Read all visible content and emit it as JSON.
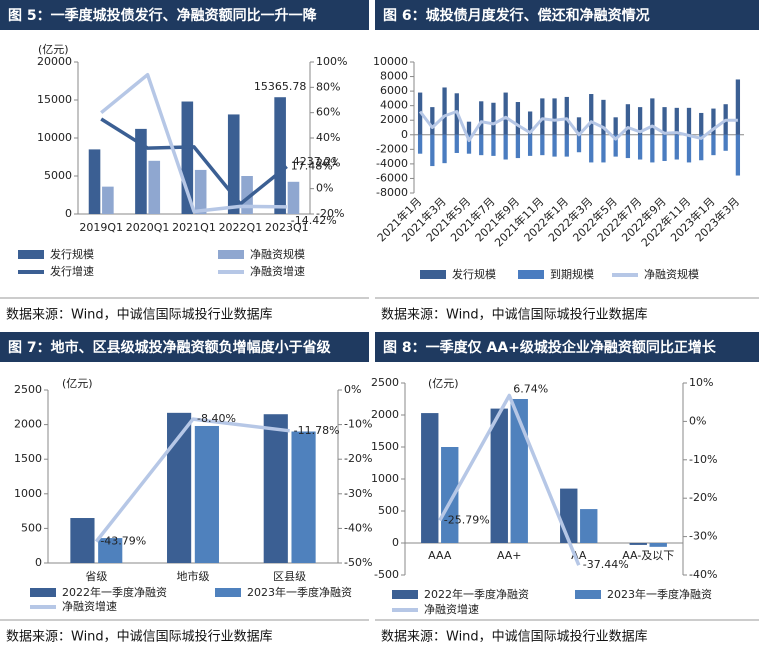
{
  "chart_data": [
    {
      "type": "bar",
      "title": "图 5：一季度城投债发行、净融资额同比一升一降",
      "source": "数据来源：Wind，中诚信国际城投行业数据库",
      "ylabel": "(亿元)",
      "categories": [
        "2019Q1",
        "2020Q1",
        "2021Q1",
        "2022Q1",
        "2023Q1"
      ],
      "ylim": [
        0,
        20000
      ],
      "yticks": [
        0,
        5000,
        10000,
        15000,
        20000
      ],
      "y2lim": [
        -20,
        100
      ],
      "y2ticks": [
        {
          "value": -20,
          "label": "-20%"
        },
        {
          "value": 0,
          "label": "0%"
        },
        {
          "value": 20,
          "label": "20%"
        },
        {
          "value": 40,
          "label": "40%"
        },
        {
          "value": 60,
          "label": "60%"
        },
        {
          "value": 80,
          "label": "80%"
        },
        {
          "value": 100,
          "label": "100%"
        }
      ],
      "barmode": "group",
      "series": [
        {
          "name": "发行规模",
          "type": "bar",
          "color": "#3b5f93",
          "values": [
            8500,
            11200,
            14800,
            13100,
            15365.78
          ]
        },
        {
          "name": "净融资规模",
          "type": "bar",
          "color": "#8fa7d0",
          "values": [
            3600,
            7000,
            5800,
            5000,
            4237.21
          ]
        },
        {
          "name": "发行增速",
          "type": "line",
          "axis": "y2",
          "color": "#3b5f93",
          "values": [
            55,
            32,
            33,
            -12,
            17.48
          ],
          "value_labels": [
            null,
            null,
            null,
            null,
            "17.48%"
          ]
        },
        {
          "name": "净融资增速",
          "type": "line",
          "axis": "y2",
          "color": "#b6c7e6",
          "values": [
            60,
            90,
            -18,
            -14,
            -14.42
          ],
          "value_labels": [
            null,
            null,
            null,
            null,
            "-14.42%"
          ]
        }
      ]
    },
    {
      "type": "bar",
      "title": "图 6：城投债月度发行、偿还和净融资情况",
      "source": "数据来源：Wind，中诚信国际城投行业数据库",
      "categories": [
        "2021年1月",
        null,
        "2021年3月",
        null,
        "2021年5月",
        null,
        "2021年7月",
        null,
        "2021年9月",
        null,
        "2021年11月",
        null,
        "2022年1月",
        null,
        "2022年3月",
        null,
        "2022年5月",
        null,
        "2022年7月",
        null,
        "2022年9月",
        null,
        "2022年11月",
        null,
        "2023年1月",
        null,
        "2023年3月"
      ],
      "ylim": [
        -8000,
        10000
      ],
      "yticks": [
        -8000,
        -6000,
        -4000,
        -2000,
        0,
        2000,
        4000,
        6000,
        8000,
        10000
      ],
      "barmode": "overlay",
      "series": [
        {
          "name": "发行规模",
          "type": "bar",
          "color": "#3b5f93",
          "values": [
            5800,
            3800,
            6500,
            5700,
            1800,
            4600,
            4400,
            5800,
            4500,
            3200,
            5000,
            5000,
            5200,
            2400,
            5600,
            4800,
            2400,
            4200,
            3800,
            5000,
            3800,
            3700,
            3700,
            3000,
            3600,
            4200,
            7600
          ]
        },
        {
          "name": "到期规模",
          "type": "bar",
          "color": "#4a7cc0",
          "values": [
            -2600,
            -4300,
            -3900,
            -2500,
            -2600,
            -2800,
            -2900,
            -3400,
            -3200,
            -2900,
            -2800,
            -3000,
            -3000,
            -2400,
            -3800,
            -3800,
            -3000,
            -3200,
            -3400,
            -3800,
            -3600,
            -3400,
            -3800,
            -3500,
            -2800,
            -2200,
            -5600
          ]
        },
        {
          "name": "净融资规模",
          "type": "line",
          "color": "#b6c7e6",
          "values": [
            3200,
            1000,
            2600,
            3200,
            -800,
            1800,
            1500,
            2400,
            1300,
            300,
            2200,
            2000,
            2200,
            0,
            1800,
            1000,
            -600,
            1000,
            400,
            1200,
            200,
            300,
            -100,
            -500,
            800,
            2000,
            2000
          ]
        }
      ]
    },
    {
      "type": "bar",
      "title": "图 7：地市、区县级城投净融资额负增幅度小于省级",
      "source": "数据来源：Wind，中诚信国际城投行业数据库",
      "ylabel": "(亿元)",
      "categories": [
        "省级",
        "地市级",
        "区县级"
      ],
      "ylim": [
        0,
        2500
      ],
      "yticks": [
        0,
        500,
        1000,
        1500,
        2000,
        2500
      ],
      "y2lim": [
        -50,
        0
      ],
      "y2ticks": [
        {
          "value": -50,
          "label": "-50%"
        },
        {
          "value": -40,
          "label": "-40%"
        },
        {
          "value": -30,
          "label": "-30%"
        },
        {
          "value": -20,
          "label": "-20%"
        },
        {
          "value": -10,
          "label": "-10%"
        },
        {
          "value": 0,
          "label": "0%"
        }
      ],
      "barmode": "group",
      "series": [
        {
          "name": "2022年一季度净融资",
          "type": "bar",
          "color": "#3b5f93",
          "values": [
            650,
            2170,
            2150
          ]
        },
        {
          "name": "2023年一季度净融资",
          "type": "bar",
          "color": "#4f81bd",
          "values": [
            360,
            1980,
            1900
          ]
        },
        {
          "name": "净融资增速",
          "type": "line",
          "axis": "y2",
          "color": "#b6c7e6",
          "values": [
            -43.79,
            -8.4,
            -11.78
          ],
          "value_labels": [
            "-43.79%",
            "-8.40%",
            "-11.78%"
          ]
        }
      ]
    },
    {
      "type": "bar",
      "title": "图 8：一季度仅 AA+级城投企业净融资额同比正增长",
      "source": "数据来源：Wind，中诚信国际城投行业数据库",
      "ylabel": "(亿元)",
      "categories": [
        "AAA",
        "AA+",
        "AA",
        "AA-及以下"
      ],
      "ylim": [
        -500,
        2500
      ],
      "yticks": [
        -500,
        0,
        500,
        1000,
        1500,
        2000,
        2500
      ],
      "y2lim": [
        -40,
        10
      ],
      "y2ticks": [
        {
          "value": -40,
          "label": "-40%"
        },
        {
          "value": -30,
          "label": "-30%"
        },
        {
          "value": -20,
          "label": "-20%"
        },
        {
          "value": -10,
          "label": "-10%"
        },
        {
          "value": 0,
          "label": "0%"
        },
        {
          "value": 10,
          "label": "10%"
        }
      ],
      "barmode": "group",
      "series": [
        {
          "name": "2022年一季度净融资",
          "type": "bar",
          "color": "#3b5f93",
          "values": [
            2030,
            2100,
            850,
            -30
          ]
        },
        {
          "name": "2023年一季度净融资",
          "type": "bar",
          "color": "#4f81bd",
          "values": [
            1500,
            2250,
            530,
            -60
          ]
        },
        {
          "name": "净融资增速",
          "type": "line",
          "axis": "y2",
          "color": "#b6c7e6",
          "values": [
            -25.79,
            6.74,
            -37.44,
            null
          ],
          "value_labels": [
            "-25.79%",
            "6.74%",
            "-37.44%",
            null
          ]
        }
      ]
    }
  ]
}
